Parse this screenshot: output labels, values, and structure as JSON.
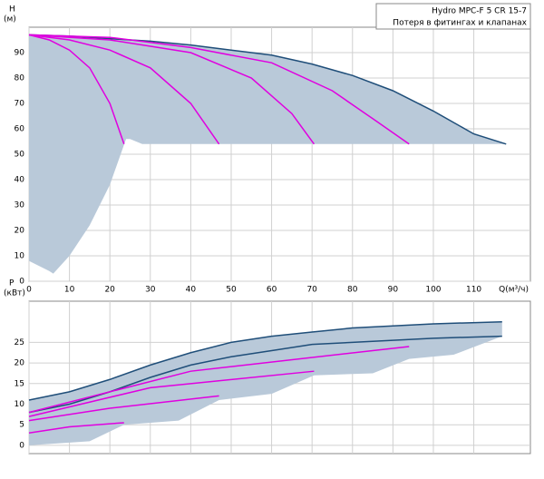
{
  "chart_data": [
    {
      "type": "line",
      "ylabel": "H",
      "yunit": "(м)",
      "xlabel": "Q(м³/ч)",
      "annotations": [
        "Hydro MPC-F 5 CR 15-7",
        "Потеря в фитингах и клапанах"
      ],
      "xlim": [
        0,
        124
      ],
      "ylim": [
        0,
        100
      ],
      "xticks": [
        0,
        10,
        20,
        30,
        40,
        50,
        60,
        70,
        80,
        90,
        100,
        110
      ],
      "yticks": [
        0,
        10,
        20,
        30,
        40,
        50,
        60,
        70,
        80,
        90
      ],
      "show_xtick_labels": true,
      "grid": true,
      "series": [
        {
          "fill": true,
          "color": "#b9c9d9",
          "x": [
            0,
            5,
            6,
            10,
            15,
            20,
            24,
            25,
            28,
            118,
            110,
            100,
            90,
            80,
            70,
            60,
            50,
            40,
            30,
            20,
            10,
            0
          ],
          "values": [
            8,
            4,
            3,
            10,
            22,
            38,
            56,
            56,
            54,
            54,
            58,
            67,
            75,
            81,
            85.5,
            89,
            91,
            93,
            94.5,
            95.5,
            96.5,
            97
          ]
        },
        {
          "color": "#1f4e79",
          "x": [
            0,
            10,
            20,
            30,
            40,
            50,
            60,
            70,
            80,
            90,
            100,
            110,
            118
          ],
          "values": [
            97,
            96.5,
            95.5,
            94.5,
            93,
            91,
            89,
            85.5,
            81,
            75,
            67,
            58,
            54
          ]
        },
        {
          "color": "#e000e0",
          "x": [
            0,
            5,
            10,
            15,
            20,
            23.5
          ],
          "values": [
            97,
            95,
            91,
            84,
            70,
            54
          ]
        },
        {
          "color": "#e000e0",
          "x": [
            0,
            10,
            20,
            30,
            40,
            47
          ],
          "values": [
            97,
            95,
            91,
            84,
            70,
            54
          ]
        },
        {
          "color": "#e000e0",
          "x": [
            0,
            20,
            40,
            55,
            65,
            70.5
          ],
          "values": [
            97,
            95,
            90,
            80,
            66,
            54
          ]
        },
        {
          "color": "#e000e0",
          "x": [
            0,
            20,
            40,
            60,
            75,
            85,
            94
          ],
          "values": [
            97,
            96,
            92,
            86,
            75,
            64,
            54
          ]
        }
      ]
    },
    {
      "type": "line",
      "ylabel": "P",
      "yunit": "(кВт)",
      "xlim": [
        0,
        124
      ],
      "ylim": [
        -2,
        35
      ],
      "xticks": [
        0,
        10,
        20,
        30,
        40,
        50,
        60,
        70,
        80,
        90,
        100,
        110
      ],
      "yticks": [
        0,
        5,
        10,
        15,
        20,
        25
      ],
      "show_xtick_labels": false,
      "grid": true,
      "series": [
        {
          "fill": true,
          "color": "#b9c9d9",
          "x": [
            0,
            10,
            20,
            30,
            40,
            50,
            60,
            70,
            80,
            90,
            100,
            117,
            117,
            105,
            94,
            85,
            70.5,
            60,
            47,
            37,
            23.5,
            15,
            0
          ],
          "values": [
            11,
            13,
            16,
            19.5,
            22.5,
            25,
            26.5,
            27.5,
            28.5,
            29,
            29.5,
            30,
            26.5,
            22,
            21,
            17.5,
            17,
            12.5,
            11,
            6,
            5,
            1,
            0
          ]
        },
        {
          "color": "#1f4e79",
          "x": [
            0,
            10,
            20,
            30,
            40,
            50,
            60,
            70,
            80,
            90,
            100,
            117
          ],
          "values": [
            11,
            13,
            16,
            19.5,
            22.5,
            25,
            26.5,
            27.5,
            28.5,
            29,
            29.5,
            30
          ]
        },
        {
          "color": "#1f4e79",
          "x": [
            0,
            10,
            20,
            30,
            40,
            50,
            60,
            70,
            80,
            90,
            100,
            117
          ],
          "values": [
            8,
            10,
            13,
            16.5,
            19.5,
            21.5,
            23,
            24.5,
            25,
            25.5,
            26,
            26.5
          ]
        },
        {
          "color": "#e000e0",
          "x": [
            0,
            10,
            23.5
          ],
          "values": [
            3,
            4.5,
            5.5
          ]
        },
        {
          "color": "#e000e0",
          "x": [
            0,
            20,
            47
          ],
          "values": [
            6,
            9,
            12
          ]
        },
        {
          "color": "#e000e0",
          "x": [
            0,
            30,
            70.5
          ],
          "values": [
            7,
            14,
            18
          ]
        },
        {
          "color": "#e000e0",
          "x": [
            0,
            40,
            94
          ],
          "values": [
            8,
            18,
            24
          ]
        }
      ]
    }
  ]
}
